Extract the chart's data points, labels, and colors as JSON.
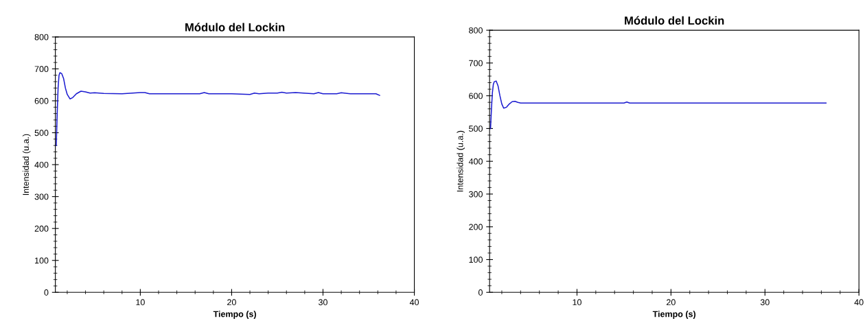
{
  "chart_data": [
    {
      "type": "line",
      "title": "Módulo del Lockin",
      "xlabel": "Tiempo (s)",
      "ylabel": "Intensidad (u.a.)",
      "xlim": [
        0.7,
        40
      ],
      "ylim": [
        0,
        800
      ],
      "xticks": [
        10,
        20,
        30,
        40
      ],
      "yticks": [
        0,
        100,
        200,
        300,
        400,
        500,
        600,
        700,
        800
      ],
      "series": [
        {
          "color": "#1a1ad0",
          "x": [
            0.8,
            0.9,
            1.0,
            1.1,
            1.2,
            1.4,
            1.6,
            1.8,
            2.0,
            2.3,
            2.6,
            3.0,
            3.5,
            4.0,
            4.5,
            5.0,
            6.0,
            8.0,
            10.0,
            10.5,
            11.0,
            14.0,
            16.5,
            17.0,
            17.5,
            20.0,
            22.0,
            22.5,
            23.0,
            24.0,
            25.0,
            25.5,
            26.0,
            27.0,
            29.0,
            29.5,
            30.0,
            31.5,
            32.0,
            33.0,
            35.0,
            35.8,
            36.2
          ],
          "values": [
            460,
            560,
            640,
            680,
            688,
            685,
            670,
            640,
            620,
            606,
            610,
            622,
            630,
            628,
            624,
            625,
            623,
            622,
            626,
            626,
            622,
            622,
            622,
            626,
            622,
            622,
            620,
            624,
            622,
            624,
            624,
            627,
            624,
            626,
            622,
            626,
            622,
            622,
            625,
            622,
            622,
            622,
            617
          ]
        }
      ]
    },
    {
      "type": "line",
      "title": "Módulo del Lockin",
      "xlabel": "Tiempo (s)",
      "ylabel": "Intensidad (u.a.)",
      "xlim": [
        0.7,
        40
      ],
      "ylim": [
        0,
        800
      ],
      "xticks": [
        10,
        20,
        30,
        40
      ],
      "yticks": [
        0,
        100,
        200,
        300,
        400,
        500,
        600,
        700,
        800
      ],
      "series": [
        {
          "color": "#1a1ad0",
          "x": [
            0.8,
            0.9,
            1.0,
            1.1,
            1.2,
            1.4,
            1.6,
            1.8,
            2.0,
            2.2,
            2.5,
            2.8,
            3.1,
            3.4,
            3.7,
            4.0,
            5.0,
            10.0,
            15.0,
            15.3,
            15.6,
            20.0,
            30.0,
            36.5
          ],
          "values": [
            500,
            560,
            610,
            635,
            643,
            645,
            630,
            600,
            575,
            562,
            565,
            575,
            582,
            583,
            580,
            578,
            578,
            578,
            578,
            581,
            578,
            578,
            578,
            578
          ]
        }
      ]
    }
  ]
}
